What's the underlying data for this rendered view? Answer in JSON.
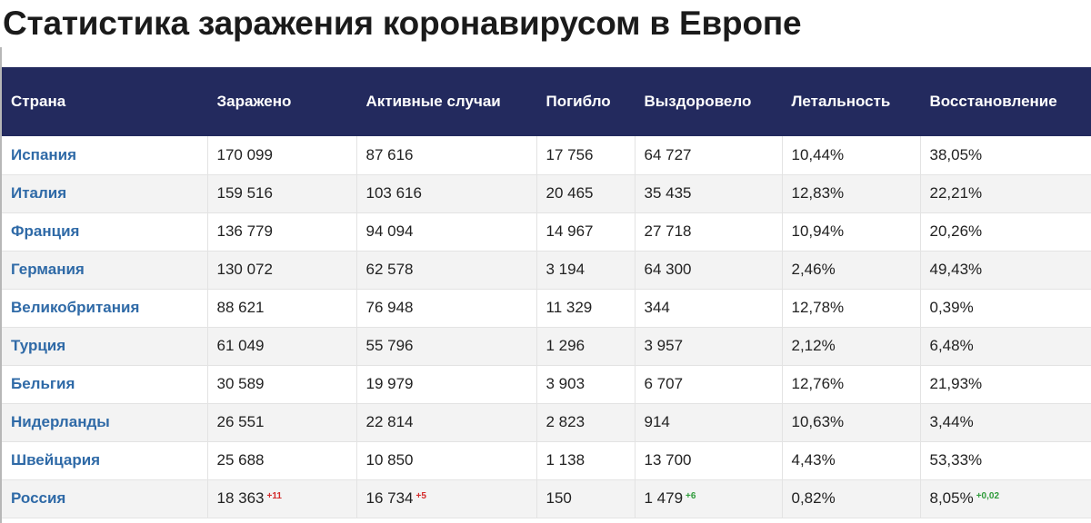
{
  "page": {
    "title": "Статистика заражения коронавирусом в Европе"
  },
  "table": {
    "headers": [
      "Страна",
      "Заражено",
      "Активные случаи",
      "Погибло",
      "Выздоровело",
      "Летальность",
      "Восстановление"
    ],
    "rows": [
      {
        "country": "Испания",
        "infected": "170 099",
        "active": "87 616",
        "deaths": "17 756",
        "recovered": "64 727",
        "lethality": "10,44%",
        "recovery": "38,05%"
      },
      {
        "country": "Италия",
        "infected": "159 516",
        "active": "103 616",
        "deaths": "20 465",
        "recovered": "35 435",
        "lethality": "12,83%",
        "recovery": "22,21%"
      },
      {
        "country": "Франция",
        "infected": "136 779",
        "active": "94 094",
        "deaths": "14 967",
        "recovered": "27 718",
        "lethality": "10,94%",
        "recovery": "20,26%"
      },
      {
        "country": "Германия",
        "infected": "130 072",
        "active": "62 578",
        "deaths": "3 194",
        "recovered": "64 300",
        "lethality": "2,46%",
        "recovery": "49,43%"
      },
      {
        "country": "Великобритания",
        "infected": "88 621",
        "active": "76 948",
        "deaths": "11 329",
        "recovered": "344",
        "lethality": "12,78%",
        "recovery": "0,39%"
      },
      {
        "country": "Турция",
        "infected": "61 049",
        "active": "55 796",
        "deaths": "1 296",
        "recovered": "3 957",
        "lethality": "2,12%",
        "recovery": "6,48%"
      },
      {
        "country": "Бельгия",
        "infected": "30 589",
        "active": "19 979",
        "deaths": "3 903",
        "recovered": "6 707",
        "lethality": "12,76%",
        "recovery": "21,93%"
      },
      {
        "country": "Нидерланды",
        "infected": "26 551",
        "active": "22 814",
        "deaths": "2 823",
        "recovered": "914",
        "lethality": "10,63%",
        "recovery": "3,44%"
      },
      {
        "country": "Швейцария",
        "infected": "25 688",
        "active": "10 850",
        "deaths": "1 138",
        "recovered": "13 700",
        "lethality": "4,43%",
        "recovery": "53,33%"
      },
      {
        "country": "Россия",
        "infected": "18 363",
        "infected_delta": "+11",
        "active": "16 734",
        "active_delta": "+5",
        "deaths": "150",
        "recovered": "1 479",
        "recovered_delta": "+6",
        "lethality": "0,82%",
        "recovery": "8,05%",
        "recovery_delta": "+0,02"
      }
    ]
  },
  "colors": {
    "header_bg": "#232a5e",
    "country_link": "#2f6aa7",
    "delta_red": "#d42a2a",
    "delta_green": "#2e9b3a"
  }
}
